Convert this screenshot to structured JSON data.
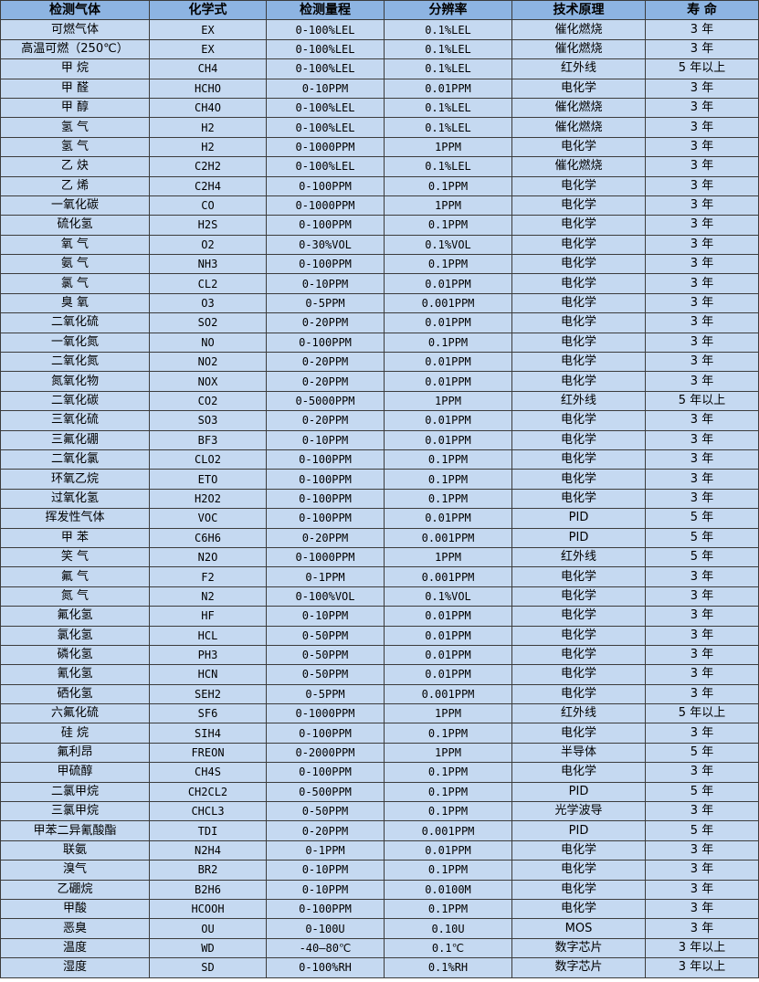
{
  "colors": {
    "header_bg": "#8db4e2",
    "row_bg": "#c5d9f1",
    "border": "#3c3c3c"
  },
  "table": {
    "headers": [
      "检测气体",
      "化学式",
      "检测量程",
      "分辨率",
      "技术原理",
      "寿 命"
    ],
    "rows": [
      [
        "可燃气体",
        "EX",
        "0-100%LEL",
        "0.1%LEL",
        "催化燃烧",
        "3 年"
      ],
      [
        "高温可燃（250℃）",
        "EX",
        "0-100%LEL",
        "0.1%LEL",
        "催化燃烧",
        "3 年"
      ],
      [
        "甲 烷",
        "CH4",
        "0-100%LEL",
        "0.1%LEL",
        "红外线",
        "5 年以上"
      ],
      [
        "甲 醛",
        "HCHO",
        "0-10PPM",
        "0.01PPM",
        "电化学",
        "3 年"
      ],
      [
        "甲 醇",
        "CH4O",
        "0-100%LEL",
        "0.1%LEL",
        "催化燃烧",
        "3 年"
      ],
      [
        "氢 气",
        "H2",
        "0-100%LEL",
        "0.1%LEL",
        "催化燃烧",
        "3 年"
      ],
      [
        "氢 气",
        "H2",
        "0-1000PPM",
        "1PPM",
        "电化学",
        "3 年"
      ],
      [
        "乙 炔",
        "C2H2",
        "0-100%LEL",
        "0.1%LEL",
        "催化燃烧",
        "3 年"
      ],
      [
        "乙 烯",
        "C2H4",
        "0-100PPM",
        "0.1PPM",
        "电化学",
        "3 年"
      ],
      [
        "一氧化碳",
        "CO",
        "0-1000PPM",
        "1PPM",
        "电化学",
        "3 年"
      ],
      [
        "硫化氢",
        "H2S",
        "0-100PPM",
        "0.1PPM",
        "电化学",
        "3 年"
      ],
      [
        "氧 气",
        "O2",
        "0-30%VOL",
        "0.1%VOL",
        "电化学",
        "3 年"
      ],
      [
        "氨 气",
        "NH3",
        "0-100PPM",
        "0.1PPM",
        "电化学",
        "3 年"
      ],
      [
        "氯 气",
        "CL2",
        "0-10PPM",
        "0.01PPM",
        "电化学",
        "3 年"
      ],
      [
        "臭 氧",
        "O3",
        "0-5PPM",
        "0.001PPM",
        "电化学",
        "3 年"
      ],
      [
        "二氧化硫",
        "SO2",
        "0-20PPM",
        "0.01PPM",
        "电化学",
        "3 年"
      ],
      [
        "一氧化氮",
        "NO",
        "0-100PPM",
        "0.1PPM",
        "电化学",
        "3 年"
      ],
      [
        "二氧化氮",
        "NO2",
        "0-20PPM",
        "0.01PPM",
        "电化学",
        "3 年"
      ],
      [
        "氮氧化物",
        "NOX",
        "0-20PPM",
        "0.01PPM",
        "电化学",
        "3 年"
      ],
      [
        "二氧化碳",
        "CO2",
        "0-5000PPM",
        "1PPM",
        "红外线",
        "5 年以上"
      ],
      [
        "三氧化硫",
        "SO3",
        "0-20PPM",
        "0.01PPM",
        "电化学",
        "3 年"
      ],
      [
        "三氟化硼",
        "BF3",
        "0-10PPM",
        "0.01PPM",
        "电化学",
        "3 年"
      ],
      [
        "二氧化氯",
        "CLO2",
        "0-100PPM",
        "0.1PPM",
        "电化学",
        "3 年"
      ],
      [
        "环氧乙烷",
        "ETO",
        "0-100PPM",
        "0.1PPM",
        "电化学",
        "3 年"
      ],
      [
        "过氧化氢",
        "H2O2",
        "0-100PPM",
        "0.1PPM",
        "电化学",
        "3 年"
      ],
      [
        "挥发性气体",
        "VOC",
        "0-100PPM",
        "0.01PPM",
        "PID",
        "5 年"
      ],
      [
        "甲 苯",
        "C6H6",
        "0-20PPM",
        "0.001PPM",
        "PID",
        "5 年"
      ],
      [
        "笑 气",
        "N2O",
        "0-1000PPM",
        "1PPM",
        "红外线",
        "5 年"
      ],
      [
        "氟 气",
        "F2",
        "0-1PPM",
        "0.001PPM",
        "电化学",
        "3 年"
      ],
      [
        "氮 气",
        "N2",
        "0-100%VOL",
        "0.1%VOL",
        "电化学",
        "3 年"
      ],
      [
        "氟化氢",
        "HF",
        "0-10PPM",
        "0.01PPM",
        "电化学",
        "3 年"
      ],
      [
        "氯化氢",
        "HCL",
        "0-50PPM",
        "0.01PPM",
        "电化学",
        "3 年"
      ],
      [
        "磷化氢",
        "PH3",
        "0-50PPM",
        "0.01PPM",
        "电化学",
        "3 年"
      ],
      [
        "氰化氢",
        "HCN",
        "0-50PPM",
        "0.01PPM",
        "电化学",
        "3 年"
      ],
      [
        "硒化氢",
        "SEH2",
        "0-5PPM",
        "0.001PPM",
        "电化学",
        "3 年"
      ],
      [
        "六氟化硫",
        "SF6",
        "0-1000PPM",
        "1PPM",
        "红外线",
        "5 年以上"
      ],
      [
        "硅 烷",
        "SIH4",
        "0-100PPM",
        "0.1PPM",
        "电化学",
        "3 年"
      ],
      [
        "氟利昂",
        "FREON",
        "0-2000PPM",
        "1PPM",
        "半导体",
        "5 年"
      ],
      [
        "甲硫醇",
        "CH4S",
        "0-100PPM",
        "0.1PPM",
        "电化学",
        "3 年"
      ],
      [
        "二氯甲烷",
        "CH2CL2",
        "0-500PPM",
        "0.1PPM",
        "PID",
        "5 年"
      ],
      [
        "三氯甲烷",
        "CHCL3",
        "0-50PPM",
        "0.1PPM",
        "光学波导",
        "3 年"
      ],
      [
        "甲苯二异氰酸酯",
        "TDI",
        "0-20PPM",
        "0.001PPM",
        "PID",
        "5 年"
      ],
      [
        "联氨",
        "N2H4",
        "0-1PPM",
        "0.01PPM",
        "电化学",
        "3 年"
      ],
      [
        "溴气",
        "BR2",
        "0-10PPM",
        "0.1PPM",
        "电化学",
        "3 年"
      ],
      [
        "乙硼烷",
        "B2H6",
        "0-10PPM",
        "0.0100M",
        "电化学",
        "3 年"
      ],
      [
        "甲酸",
        "HCOOH",
        "0-100PPM",
        "0.1PPM",
        "电化学",
        "3 年"
      ],
      [
        "恶臭",
        "OU",
        "0-100U",
        "0.10U",
        "MOS",
        "3 年"
      ],
      [
        "温度",
        "WD",
        "-40—80℃",
        "0.1℃",
        "数字芯片",
        "3 年以上"
      ],
      [
        "湿度",
        "SD",
        "0-100%RH",
        "0.1%RH",
        "数字芯片",
        "3 年以上"
      ]
    ]
  }
}
